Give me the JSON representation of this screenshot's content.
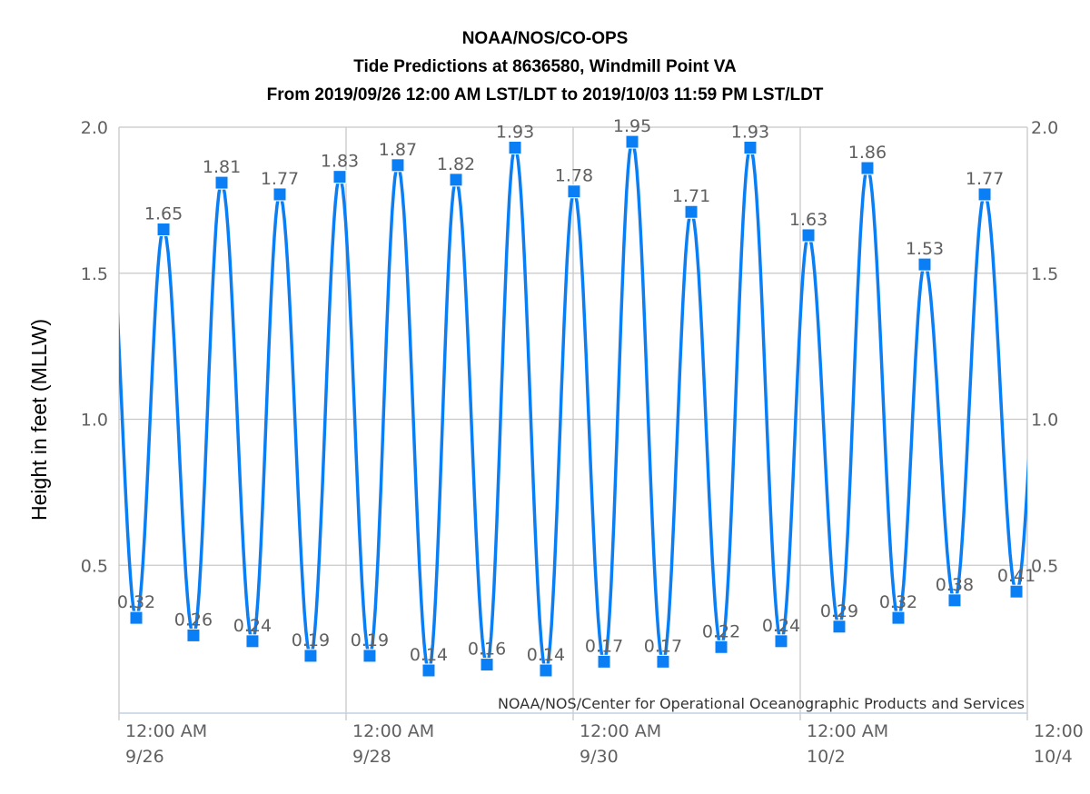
{
  "chart_data": {
    "type": "line",
    "title": [
      "NOAA/NOS/CO-OPS",
      "Tide Predictions at 8636580, Windmill Point VA",
      "From 2019/09/26 12:00 AM LST/LDT to 2019/10/03 11:59 PM LST/LDT"
    ],
    "ylabel": "Height in feet (MLLW)",
    "ylim": [
      0,
      2.0
    ],
    "yticks": [
      "0.5",
      "1.0",
      "1.5",
      "2.0"
    ],
    "yticks_right": [
      "0.5",
      "1.0",
      "1.5",
      "2.0"
    ],
    "xlim": [
      "2019-09-26 00:00",
      "2019-10-04 00:00"
    ],
    "xticks": [
      {
        "time": "2019-09-26 00:00",
        "line1": "12:00 AM",
        "line2": "9/26"
      },
      {
        "time": "2019-09-28 00:00",
        "line1": "12:00 AM",
        "line2": "9/28"
      },
      {
        "time": "2019-09-30 00:00",
        "line1": "12:00 AM",
        "line2": "9/30"
      },
      {
        "time": "2019-10-02 00:00",
        "line1": "12:00 AM",
        "line2": "10/2"
      },
      {
        "time": "2019-10-04 00:00",
        "line1": "12:00",
        "line2": "10/4"
      }
    ],
    "grid": true,
    "credit": "NOAA/NOS/Center for Operational Oceanographic Products and Services",
    "series": [
      {
        "color": "#0a7ff5",
        "marker": "square",
        "points": [
          {
            "x": "2019-09-26 03:39",
            "y": 0.32,
            "label": "0.32"
          },
          {
            "x": "2019-09-26 09:25",
            "y": 1.65,
            "label": "1.65"
          },
          {
            "x": "2019-09-26 15:44",
            "y": 0.26,
            "label": "0.26"
          },
          {
            "x": "2019-09-26 21:42",
            "y": 1.81,
            "label": "1.81"
          },
          {
            "x": "2019-09-27 04:13",
            "y": 0.24,
            "label": "0.24"
          },
          {
            "x": "2019-09-27 09:59",
            "y": 1.77,
            "label": "1.77"
          },
          {
            "x": "2019-09-27 16:30",
            "y": 0.19,
            "label": "0.19"
          },
          {
            "x": "2019-09-27 22:39",
            "y": 1.83,
            "label": "1.83"
          },
          {
            "x": "2019-09-28 04:59",
            "y": 0.19,
            "label": "0.19"
          },
          {
            "x": "2019-09-28 10:56",
            "y": 1.87,
            "label": "1.87"
          },
          {
            "x": "2019-09-28 17:28",
            "y": 0.14,
            "label": "0.14"
          },
          {
            "x": "2019-09-28 23:14",
            "y": 1.82,
            "label": "1.82"
          },
          {
            "x": "2019-09-29 05:46",
            "y": 0.16,
            "label": "0.16"
          },
          {
            "x": "2019-09-29 11:43",
            "y": 1.93,
            "label": "1.93"
          },
          {
            "x": "2019-09-29 18:14",
            "y": 0.14,
            "label": "0.14"
          },
          {
            "x": "2019-09-30 00:11",
            "y": 1.78,
            "label": "1.78"
          },
          {
            "x": "2019-09-30 06:32",
            "y": 0.17,
            "label": "0.17"
          },
          {
            "x": "2019-09-30 12:29",
            "y": 1.95,
            "label": "1.95"
          },
          {
            "x": "2019-09-30 19:00",
            "y": 0.17,
            "label": "0.17"
          },
          {
            "x": "2019-10-01 00:58",
            "y": 1.71,
            "label": "1.71"
          },
          {
            "x": "2019-10-01 07:18",
            "y": 0.22,
            "label": "0.22"
          },
          {
            "x": "2019-10-01 13:26",
            "y": 1.93,
            "label": "1.93"
          },
          {
            "x": "2019-10-01 19:58",
            "y": 0.24,
            "label": "0.24"
          },
          {
            "x": "2019-10-02 01:44",
            "y": 1.63,
            "label": "1.63"
          },
          {
            "x": "2019-10-02 08:15",
            "y": 0.29,
            "label": "0.29"
          },
          {
            "x": "2019-10-02 14:12",
            "y": 1.86,
            "label": "1.86"
          },
          {
            "x": "2019-10-02 20:44",
            "y": 0.32,
            "label": "0.32"
          },
          {
            "x": "2019-10-03 02:18",
            "y": 1.53,
            "label": "1.53"
          },
          {
            "x": "2019-10-03 08:38",
            "y": 0.38,
            "label": "0.38"
          },
          {
            "x": "2019-10-03 14:59",
            "y": 1.77,
            "label": "1.77"
          },
          {
            "x": "2019-10-03 21:42",
            "y": 0.41,
            "label": "0.41"
          }
        ]
      }
    ]
  }
}
